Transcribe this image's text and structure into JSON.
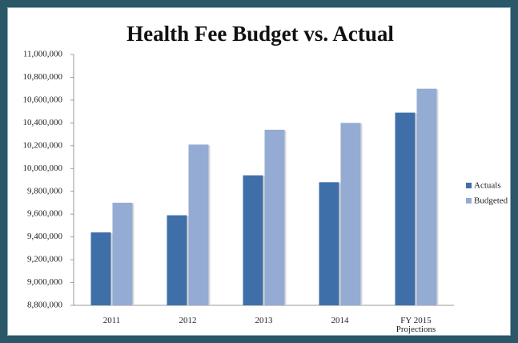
{
  "chart_data": {
    "type": "bar",
    "title": "Health Fee Budget vs. Actual",
    "categories": [
      "2011",
      "2012",
      "2013",
      "2014",
      "FY 2015 Projections"
    ],
    "series": [
      {
        "name": "Actuals",
        "color": "#3f6fa9",
        "values": [
          9440000,
          9590000,
          9940000,
          9880000,
          10490000
        ]
      },
      {
        "name": "Budgeted",
        "color": "#94abd3",
        "values": [
          9700000,
          10210000,
          10340000,
          10400000,
          10700000
        ]
      }
    ],
    "ylim": [
      8800000,
      11000000
    ],
    "yticks": [
      {
        "value": 8800000,
        "label": "8,800,000"
      },
      {
        "value": 9000000,
        "label": "9,000,000"
      },
      {
        "value": 9200000,
        "label": "9,200,000"
      },
      {
        "value": 9400000,
        "label": "9,400,000"
      },
      {
        "value": 9600000,
        "label": "9,600,000"
      },
      {
        "value": 9800000,
        "label": "9,800,000"
      },
      {
        "value": 10000000,
        "label": "10,000,000"
      },
      {
        "value": 10200000,
        "label": "10,200,000"
      },
      {
        "value": 10400000,
        "label": "10,400,000"
      },
      {
        "value": 10600000,
        "label": "10,600,000"
      },
      {
        "value": 10800000,
        "label": "10,800,000"
      },
      {
        "value": 11000000,
        "label": "11,000,000"
      }
    ],
    "grid": false,
    "legend": "right"
  }
}
